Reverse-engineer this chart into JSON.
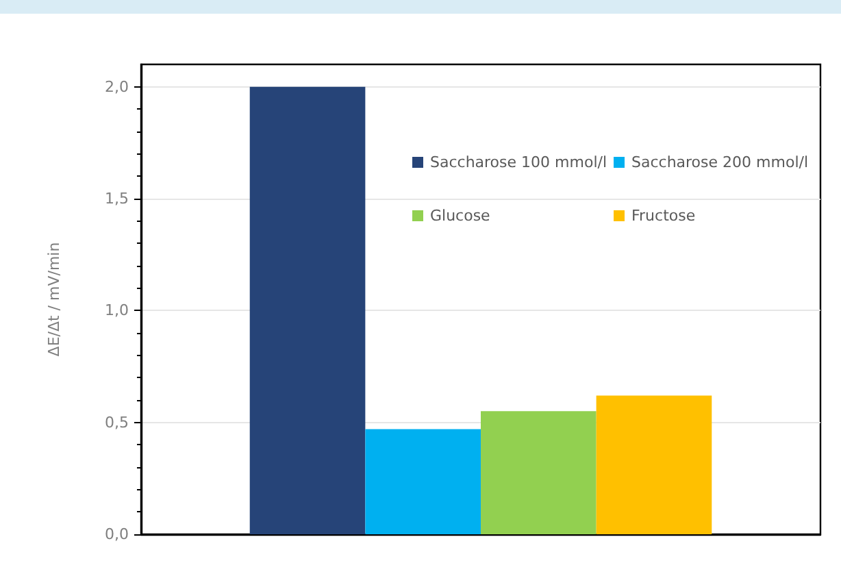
{
  "chart_data": {
    "type": "bar",
    "ylabel": "ΔE/Δt / mV/min",
    "categories": [
      null
    ],
    "series": [
      {
        "name": "Saccharose 100 mmol/l",
        "color": "#264478",
        "values": [
          2.0
        ]
      },
      {
        "name": "Saccharose 200 mmol/l",
        "color": "#00b0f0",
        "values": [
          0.47
        ]
      },
      {
        "name": "Glucose",
        "color": "#92d050",
        "values": [
          0.55
        ]
      },
      {
        "name": "Fructose",
        "color": "#ffc000",
        "values": [
          0.62
        ]
      }
    ],
    "ylim": [
      0,
      2.1
    ],
    "yticks": [
      {
        "value": 0,
        "label": "0,0"
      },
      {
        "value": 0.5,
        "label": "0,5"
      },
      {
        "value": 1,
        "label": "1,0"
      },
      {
        "value": 1.5,
        "label": "1,5"
      },
      {
        "value": 2,
        "label": "2,0"
      }
    ],
    "grid": "y",
    "legend": "top right"
  }
}
